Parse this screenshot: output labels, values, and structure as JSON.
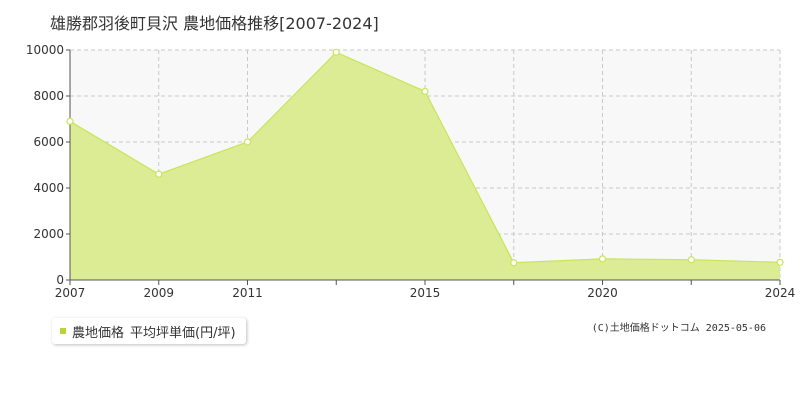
{
  "title": "雄勝郡羽後町貝沢 農地価格推移[2007-2024]",
  "legend": {
    "series_label": "農地価格",
    "unit_label": "平均坪単価(円/坪)"
  },
  "credit": "(C)土地価格ドットコム 2025-05-06",
  "colors": {
    "fill": "#dcec94",
    "line": "#c9e45a",
    "marker_fill": "#ffffff",
    "marker_stroke": "#c9e45a",
    "plot_bg": "#f8f8f8",
    "grid": "#c8c8c8",
    "legend_swatch": "#b5d63a"
  },
  "chart_data": {
    "type": "area",
    "title": "雄勝郡羽後町貝沢 農地価格推移[2007-2024]",
    "xlabel": "",
    "ylabel": "",
    "xlim": [
      2007,
      2024
    ],
    "ylim": [
      0,
      10000
    ],
    "grid": true,
    "legend_position": "bottom-left",
    "x_tick_labels": [
      "2007",
      "2009",
      "2011",
      "2015",
      "2020",
      "2024"
    ],
    "x_tick_values": [
      2007,
      2009,
      2011,
      2015,
      2020,
      2024
    ],
    "x_gridlines": [
      2007,
      2009,
      2011,
      2013,
      2015,
      2017,
      2020,
      2022,
      2024
    ],
    "y_ticks": [
      0,
      2000,
      4000,
      6000,
      8000,
      10000
    ],
    "series": [
      {
        "name": "農地価格",
        "points": [
          {
            "x": 2007,
            "y": 6900
          },
          {
            "x": 2009,
            "y": 4600
          },
          {
            "x": 2011,
            "y": 6000
          },
          {
            "x": 2013,
            "y": 9900
          },
          {
            "x": 2015,
            "y": 8200
          },
          {
            "x": 2017,
            "y": 750
          },
          {
            "x": 2020,
            "y": 920
          },
          {
            "x": 2022,
            "y": 880
          },
          {
            "x": 2024,
            "y": 770
          }
        ]
      }
    ]
  }
}
